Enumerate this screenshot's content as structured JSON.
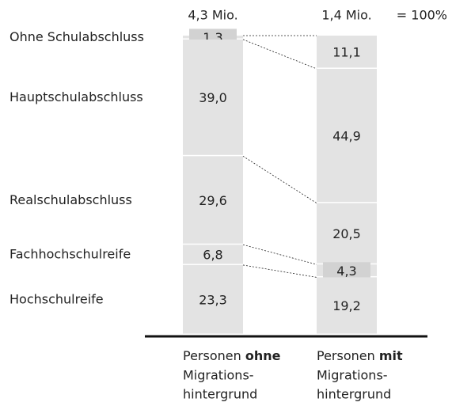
{
  "chart_data": {
    "type": "stacked_bar",
    "categories": [
      "Ohne Schulabschluss",
      "Hauptschulabschluss",
      "Realschulabschluss",
      "Fachhochschulreife",
      "Hochschulreife"
    ],
    "series": [
      {
        "label": {
          "prefix": "Personen",
          "bold": "ohne",
          "lines": [
            "Migrations-",
            "hintergrund"
          ]
        },
        "total": "4,3 Mio.",
        "values": [
          1.3,
          39.0,
          29.6,
          6.8,
          23.3
        ],
        "value_labels": [
          "1,3",
          "39,0",
          "29,6",
          "6,8",
          "23,3"
        ]
      },
      {
        "label": {
          "prefix": "Personen",
          "bold": "mit",
          "lines": [
            "Migrations-",
            "hintergrund"
          ]
        },
        "total": "1,4 Mio.",
        "values": [
          11.1,
          44.9,
          20.5,
          4.3,
          19.2
        ],
        "value_labels": [
          "11,1",
          "44,9",
          "20,5",
          "4,3",
          "19,2"
        ]
      }
    ],
    "total_note": "= 100%",
    "ylim": [
      0,
      100
    ],
    "color": "#e3e3e3",
    "highlight_color": "#d2d2d2"
  }
}
